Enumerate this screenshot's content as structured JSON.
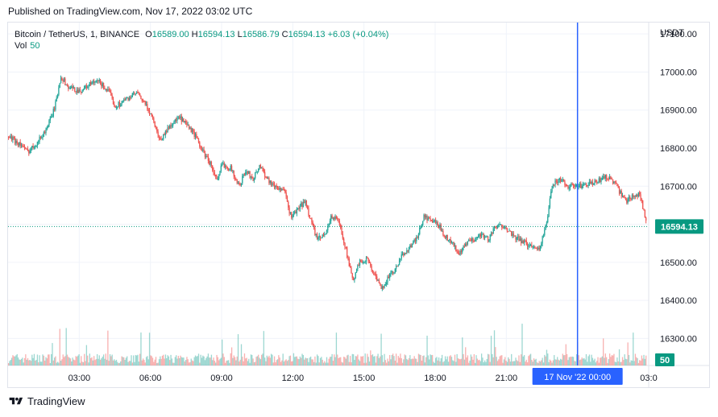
{
  "header": {
    "published": "Published on TradingView.com, Nov 17, 2022 03:02 UTC"
  },
  "legend": {
    "symbol": "Bitcoin / TetherUS, 1, BINANCE",
    "open_label": "O",
    "open": "16589.00",
    "high_label": "H",
    "high": "16594.13",
    "low_label": "L",
    "low": "16586.79",
    "close_label": "C",
    "close": "16594.13",
    "change": "+6.03 (+0.04%)",
    "vol_label": "Vol",
    "vol_value": "50"
  },
  "footer": {
    "brand": "TradingView"
  },
  "colors": {
    "up": "#26a69a",
    "down": "#ef5350",
    "crosshair": "#2962ff",
    "price_tag": "#089981",
    "grid": "#f0f3fa"
  },
  "chart_data": {
    "type": "candlestick",
    "currency_label": "USDT",
    "y_ticks": [
      "17100.00",
      "17000.00",
      "16900.00",
      "16800.00",
      "16700.00",
      "16600.00",
      "16500.00",
      "16400.00",
      "16300.00"
    ],
    "y_tick_values": [
      17100,
      17000,
      16900,
      16800,
      16700,
      16600,
      16500,
      16400,
      16300
    ],
    "ylim": [
      16229,
      17130
    ],
    "x_ticks": [
      "03:00",
      "06:00",
      "09:00",
      "12:00",
      "15:00",
      "18:00",
      "21:00",
      "03:0"
    ],
    "x_tick_hours": [
      3,
      6,
      9,
      12,
      15,
      18,
      21,
      27
    ],
    "xlim_hours": [
      0.0,
      27.0
    ],
    "crosshair_label": "17 Nov '22   00:00",
    "crosshair_hour": 24,
    "last_price": 16594.13,
    "last_price_label": "16594.13",
    "volume_label": "50",
    "grid": true,
    "price_path": [
      [
        0.0,
        16830
      ],
      [
        0.5,
        16810
      ],
      [
        0.8,
        16790
      ],
      [
        1.2,
        16815
      ],
      [
        1.5,
        16840
      ],
      [
        1.8,
        16880
      ],
      [
        2.0,
        16920
      ],
      [
        2.2,
        16990
      ],
      [
        2.5,
        16960
      ],
      [
        3.0,
        16950
      ],
      [
        3.5,
        16970
      ],
      [
        3.8,
        16975
      ],
      [
        4.2,
        16950
      ],
      [
        4.5,
        16910
      ],
      [
        5.0,
        16930
      ],
      [
        5.4,
        16945
      ],
      [
        5.7,
        16920
      ],
      [
        6.0,
        16890
      ],
      [
        6.4,
        16820
      ],
      [
        6.8,
        16860
      ],
      [
        7.2,
        16880
      ],
      [
        7.8,
        16840
      ],
      [
        8.2,
        16790
      ],
      [
        8.5,
        16760
      ],
      [
        8.8,
        16710
      ],
      [
        9.0,
        16760
      ],
      [
        9.4,
        16745
      ],
      [
        9.7,
        16700
      ],
      [
        10.0,
        16740
      ],
      [
        10.3,
        16720
      ],
      [
        10.6,
        16755
      ],
      [
        10.9,
        16720
      ],
      [
        11.2,
        16700
      ],
      [
        11.6,
        16690
      ],
      [
        11.9,
        16620
      ],
      [
        12.2,
        16640
      ],
      [
        12.5,
        16660
      ],
      [
        12.8,
        16600
      ],
      [
        13.0,
        16560
      ],
      [
        13.3,
        16570
      ],
      [
        13.6,
        16620
      ],
      [
        13.9,
        16610
      ],
      [
        14.2,
        16540
      ],
      [
        14.5,
        16450
      ],
      [
        14.8,
        16500
      ],
      [
        15.1,
        16510
      ],
      [
        15.4,
        16470
      ],
      [
        15.7,
        16430
      ],
      [
        16.0,
        16460
      ],
      [
        16.3,
        16480
      ],
      [
        16.6,
        16520
      ],
      [
        16.9,
        16540
      ],
      [
        17.2,
        16560
      ],
      [
        17.5,
        16620
      ],
      [
        17.8,
        16610
      ],
      [
        18.1,
        16600
      ],
      [
        18.4,
        16570
      ],
      [
        18.7,
        16550
      ],
      [
        19.0,
        16520
      ],
      [
        19.3,
        16550
      ],
      [
        19.6,
        16560
      ],
      [
        19.9,
        16575
      ],
      [
        20.2,
        16560
      ],
      [
        20.5,
        16590
      ],
      [
        20.9,
        16600
      ],
      [
        21.2,
        16570
      ],
      [
        21.5,
        16560
      ],
      [
        21.8,
        16550
      ],
      [
        22.1,
        16540
      ],
      [
        22.4,
        16540
      ],
      [
        22.7,
        16610
      ],
      [
        22.9,
        16700
      ],
      [
        23.2,
        16720
      ],
      [
        23.6,
        16700
      ],
      [
        24.0,
        16700
      ],
      [
        24.4,
        16705
      ],
      [
        24.8,
        16710
      ],
      [
        25.1,
        16725
      ],
      [
        25.4,
        16720
      ],
      [
        25.7,
        16690
      ],
      [
        26.0,
        16660
      ],
      [
        26.3,
        16675
      ],
      [
        26.6,
        16680
      ],
      [
        26.9,
        16600
      ]
    ]
  }
}
